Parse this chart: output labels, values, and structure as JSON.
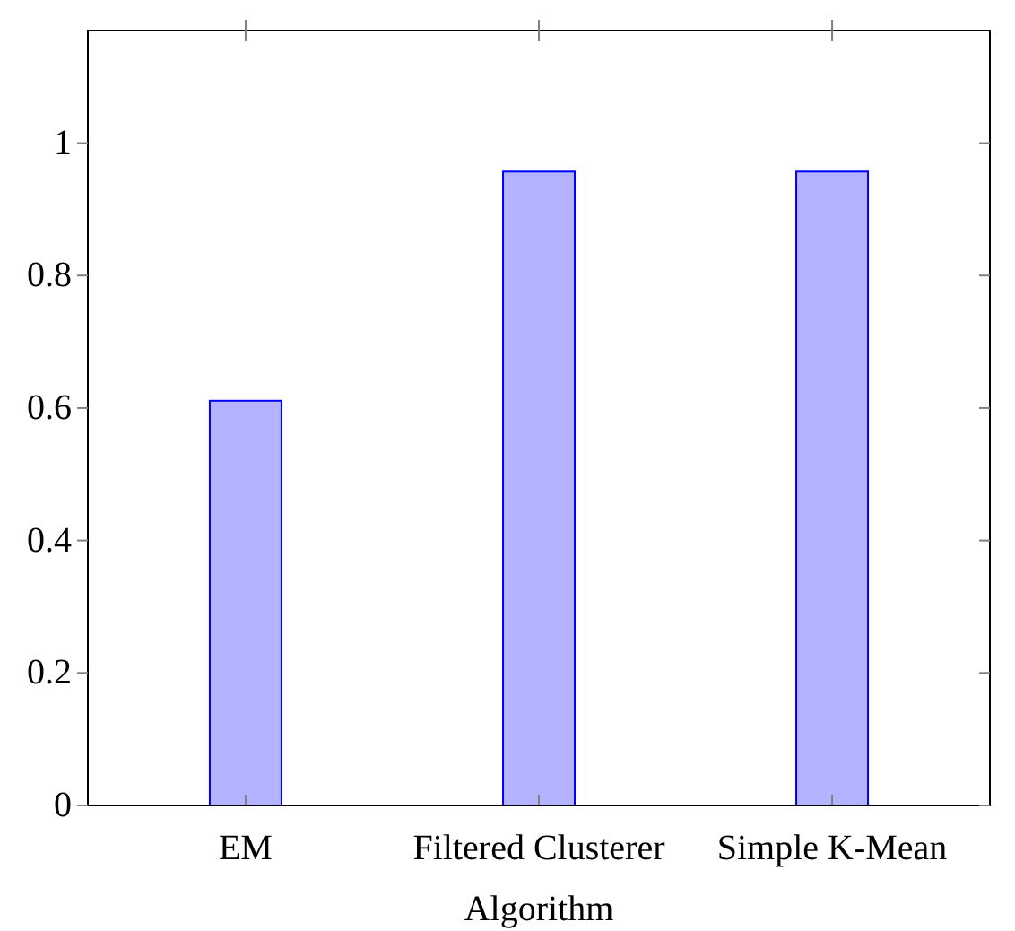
{
  "chart_data": {
    "type": "bar",
    "xlabel": "Algorithm",
    "categories": [
      "EM",
      "Filtered Clusterer",
      "Simple K-Mean"
    ],
    "values": [
      0.611,
      0.957,
      0.957
    ],
    "color": "#b3b3ff",
    "ylim": [
      0,
      1.17
    ],
    "yticks": [
      0,
      0.2,
      0.4,
      0.6,
      0.8,
      1
    ],
    "grid": false
  }
}
